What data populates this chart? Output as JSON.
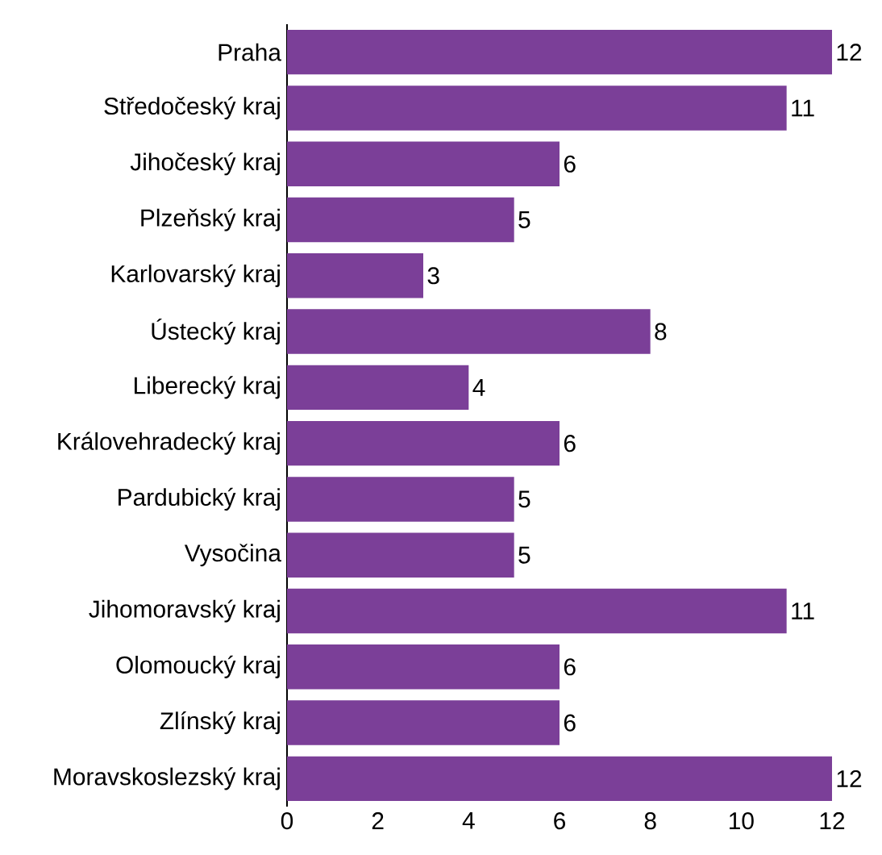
{
  "chart_data": {
    "type": "bar",
    "orientation": "horizontal",
    "categories": [
      "Praha",
      "Středočeský kraj",
      "Jihočeský kraj",
      "Plzeňský kraj",
      "Karlovarský kraj",
      "Ústecký kraj",
      "Liberecký kraj",
      "Královehradecký kraj",
      "Pardubický kraj",
      "Vysočina",
      "Jihomoravský kraj",
      "Olomoucký kraj",
      "Zlínský kraj",
      "Moravskoslezský kraj"
    ],
    "values": [
      12,
      11,
      6,
      5,
      3,
      8,
      4,
      6,
      5,
      5,
      11,
      6,
      6,
      12
    ],
    "color": "#7b3f98",
    "xlim": [
      0,
      12
    ],
    "xticks": [
      0,
      2,
      4,
      6,
      8,
      10,
      12
    ],
    "data_labels": true
  }
}
